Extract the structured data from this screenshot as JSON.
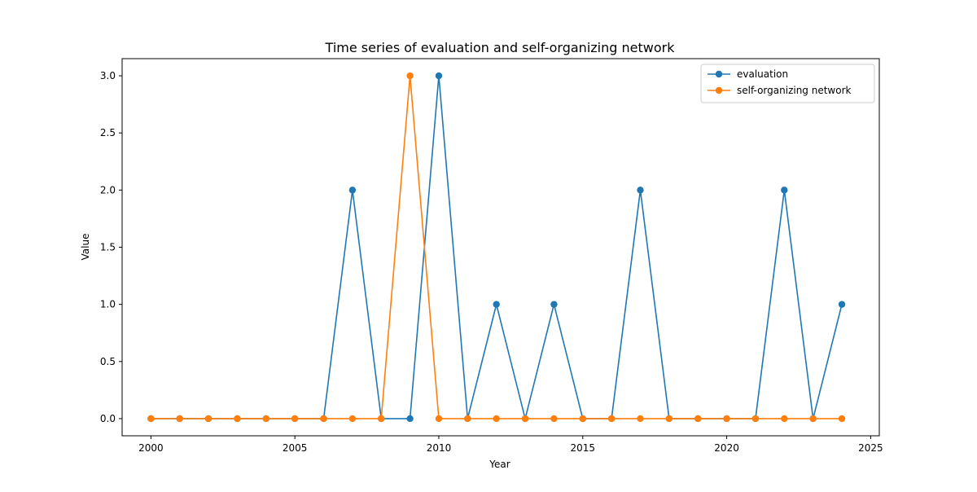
{
  "chart_data": {
    "type": "line",
    "title": "Time series of evaluation and self-organizing network",
    "xlabel": "Year",
    "ylabel": "Value",
    "xlim": [
      1999,
      2025.3
    ],
    "ylim": [
      -0.15,
      3.15
    ],
    "xticks": [
      2000,
      2005,
      2010,
      2015,
      2020,
      2025
    ],
    "xtick_labels": [
      "2000",
      "2005",
      "2010",
      "2015",
      "2020",
      "2025"
    ],
    "yticks": [
      0.0,
      0.5,
      1.0,
      1.5,
      2.0,
      2.5,
      3.0
    ],
    "ytick_labels": [
      "0.0",
      "0.5",
      "1.0",
      "1.5",
      "2.0",
      "2.5",
      "3.0"
    ],
    "grid": false,
    "legend_position": "upper right",
    "x": [
      2000,
      2001,
      2002,
      2003,
      2004,
      2005,
      2006,
      2007,
      2008,
      2009,
      2010,
      2011,
      2012,
      2013,
      2014,
      2015,
      2016,
      2017,
      2018,
      2019,
      2020,
      2021,
      2022,
      2023,
      2024
    ],
    "series": [
      {
        "name": "evaluation",
        "color": "#1f77b4",
        "values": [
          0,
          0,
          0,
          0,
          0,
          0,
          0,
          2,
          0,
          0,
          3,
          0,
          1,
          0,
          1,
          0,
          0,
          2,
          0,
          0,
          0,
          0,
          2,
          0,
          1
        ]
      },
      {
        "name": "self-organizing network",
        "color": "#ff7f0e",
        "values": [
          0,
          0,
          0,
          0,
          0,
          0,
          0,
          0,
          0,
          3,
          0,
          0,
          0,
          0,
          0,
          0,
          0,
          0,
          0,
          0,
          0,
          0,
          0,
          0,
          0
        ]
      }
    ]
  }
}
